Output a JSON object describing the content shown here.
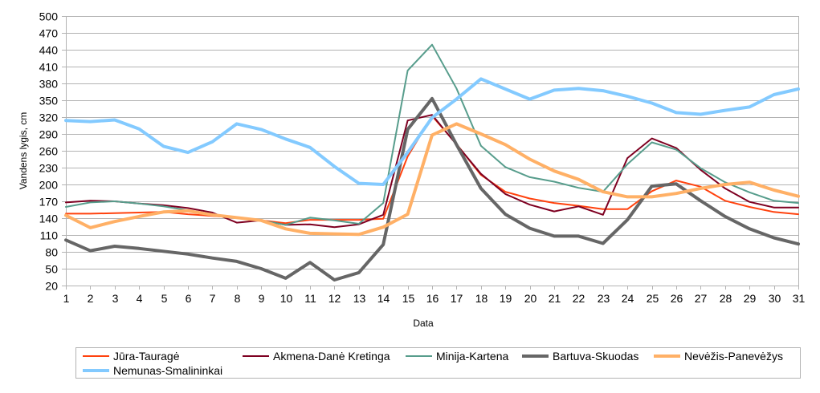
{
  "chart_data": {
    "type": "line",
    "title": "",
    "xlabel": "Data",
    "ylabel": "Vandens lygis, cm",
    "ylim": [
      20,
      500
    ],
    "ytick_step": 30,
    "yticks": [
      "20",
      "50",
      "80",
      "110",
      "140",
      "170",
      "200",
      "230",
      "260",
      "290",
      "320",
      "350",
      "380",
      "410",
      "440",
      "470",
      "500"
    ],
    "x": [
      "1",
      "2",
      "3",
      "4",
      "5",
      "6",
      "7",
      "8",
      "9",
      "10",
      "11",
      "12",
      "13",
      "14",
      "15",
      "16",
      "17",
      "18",
      "19",
      "20",
      "21",
      "22",
      "23",
      "24",
      "25",
      "26",
      "27",
      "28",
      "29",
      "30",
      "31"
    ],
    "grid": "horizontal",
    "legend_position": "bottom",
    "series": [
      {
        "name": "Jūra-Tauragė",
        "color": "#ff420e",
        "width": "thin",
        "values": [
          148,
          148,
          149,
          150,
          151,
          147,
          144,
          141,
          136,
          131,
          137,
          137,
          137,
          139,
          250,
          322,
          272,
          217,
          187,
          175,
          167,
          162,
          156,
          156,
          188,
          207,
          196,
          171,
          160,
          151,
          147
        ]
      },
      {
        "name": "Akmena-Danė Kretinga",
        "color": "#7e0021",
        "width": "thin",
        "values": [
          168,
          171,
          170,
          166,
          163,
          158,
          150,
          132,
          136,
          128,
          129,
          124,
          129,
          146,
          314,
          324,
          271,
          219,
          183,
          164,
          152,
          161,
          146,
          247,
          282,
          265,
          226,
          193,
          169,
          159,
          159
        ]
      },
      {
        "name": "Minija-Kartena",
        "color": "#579d8c",
        "width": "thin",
        "values": [
          160,
          168,
          170,
          166,
          161,
          154,
          147,
          140,
          136,
          128,
          141,
          136,
          130,
          167,
          403,
          449,
          371,
          269,
          231,
          213,
          205,
          194,
          187,
          236,
          275,
          262,
          229,
          204,
          186,
          171,
          167
        ]
      },
      {
        "name": "Bartuva-Skuodas",
        "color": "#666666",
        "width": "thick",
        "values": [
          101,
          82,
          90,
          86,
          81,
          76,
          69,
          63,
          50,
          33,
          61,
          30,
          43,
          93,
          298,
          353,
          271,
          193,
          147,
          122,
          108,
          108,
          95,
          137,
          197,
          201,
          171,
          143,
          121,
          105,
          94
        ]
      },
      {
        "name": "Nevėžis-Panevėžys",
        "color": "#ffb066",
        "width": "thick",
        "values": [
          145,
          123,
          134,
          143,
          151,
          153,
          146,
          141,
          136,
          121,
          113,
          112,
          111,
          124,
          147,
          288,
          308,
          290,
          271,
          245,
          224,
          209,
          187,
          178,
          178,
          184,
          193,
          200,
          204,
          190,
          179
        ]
      },
      {
        "name": "Nemunas-Smalininkai",
        "color": "#83caff",
        "width": "thick",
        "values": [
          314,
          312,
          315,
          299,
          268,
          257,
          276,
          308,
          298,
          281,
          266,
          232,
          202,
          200,
          257,
          319,
          352,
          388,
          370,
          352,
          368,
          371,
          367,
          357,
          345,
          328,
          325,
          332,
          338,
          360,
          370
        ]
      }
    ]
  }
}
